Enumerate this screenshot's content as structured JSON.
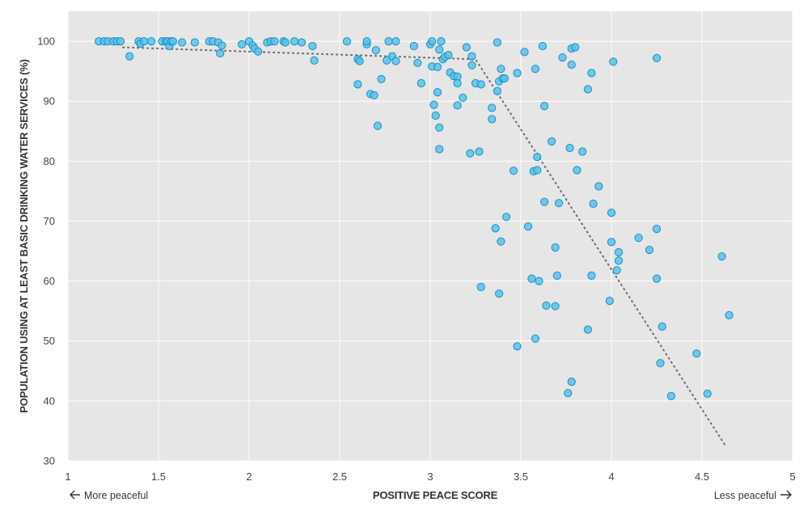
{
  "chart_data": {
    "type": "scatter",
    "title": "",
    "xlabel": "POSITIVE PEACE SCORE",
    "ylabel": "POPULATION USING AT LEAST BASIC DRINKING WATER SERVICES (%)",
    "xlim": [
      1,
      5
    ],
    "ylim": [
      30,
      105
    ],
    "x_ticks": [
      "1",
      "1.5",
      "2",
      "2.5",
      "3",
      "3.5",
      "4",
      "4.5",
      "5"
    ],
    "y_ticks": [
      "30",
      "40",
      "50",
      "60",
      "70",
      "80",
      "90",
      "100"
    ],
    "x_tick_values": [
      1,
      1.5,
      2,
      2.5,
      3,
      3.5,
      4,
      4.5,
      5
    ],
    "y_tick_values": [
      30,
      40,
      50,
      60,
      70,
      80,
      90,
      100
    ],
    "left_note": "More peaceful",
    "right_note": "Less peaceful",
    "grid": true,
    "colors": {
      "background": "#e6e6e6",
      "gridline": "#ffffff",
      "point_fill": "#5bc2e7",
      "point_stroke": "#1a8fc4",
      "trend_line": "#707070"
    },
    "trend_line": {
      "style": "dashed",
      "points": [
        [
          1.3,
          99.0
        ],
        [
          3.25,
          97.0
        ],
        [
          4.63,
          32.5
        ]
      ]
    },
    "points": [
      [
        1.17,
        100
      ],
      [
        1.2,
        100
      ],
      [
        1.22,
        100
      ],
      [
        1.25,
        100
      ],
      [
        1.27,
        100
      ],
      [
        1.29,
        100
      ],
      [
        1.34,
        97.5
      ],
      [
        1.39,
        100
      ],
      [
        1.4,
        99.6
      ],
      [
        1.42,
        100
      ],
      [
        1.46,
        100
      ],
      [
        1.52,
        100
      ],
      [
        1.54,
        100
      ],
      [
        1.55,
        100
      ],
      [
        1.56,
        99.2
      ],
      [
        1.57,
        100
      ],
      [
        1.58,
        100
      ],
      [
        1.63,
        99.8
      ],
      [
        1.7,
        99.8
      ],
      [
        1.78,
        100
      ],
      [
        1.8,
        100
      ],
      [
        1.83,
        99.8
      ],
      [
        1.84,
        98
      ],
      [
        1.85,
        99.3
      ],
      [
        1.96,
        99.5
      ],
      [
        2.0,
        100
      ],
      [
        2.02,
        99.3
      ],
      [
        2.03,
        98.8
      ],
      [
        2.05,
        98.3
      ],
      [
        2.1,
        99.8
      ],
      [
        2.12,
        100
      ],
      [
        2.14,
        100
      ],
      [
        2.19,
        100
      ],
      [
        2.2,
        99.8
      ],
      [
        2.25,
        100
      ],
      [
        2.29,
        99.8
      ],
      [
        2.35,
        99.2
      ],
      [
        2.36,
        96.8
      ],
      [
        2.54,
        100
      ],
      [
        2.6,
        97
      ],
      [
        2.6,
        92.8
      ],
      [
        2.61,
        96.7
      ],
      [
        2.65,
        99.5
      ],
      [
        2.65,
        100
      ],
      [
        2.67,
        91.2
      ],
      [
        2.69,
        91
      ],
      [
        2.7,
        98.5
      ],
      [
        2.71,
        85.9
      ],
      [
        2.73,
        93.7
      ],
      [
        2.76,
        96.8
      ],
      [
        2.77,
        100
      ],
      [
        2.79,
        97.5
      ],
      [
        2.81,
        96.7
      ],
      [
        2.81,
        100
      ],
      [
        2.91,
        99.2
      ],
      [
        2.93,
        96.4
      ],
      [
        2.95,
        93
      ],
      [
        3.0,
        99.5
      ],
      [
        3.01,
        100
      ],
      [
        3.01,
        95.8
      ],
      [
        3.02,
        89.4
      ],
      [
        3.03,
        87.6
      ],
      [
        3.04,
        95.7
      ],
      [
        3.04,
        91.5
      ],
      [
        3.05,
        85.6
      ],
      [
        3.05,
        82
      ],
      [
        3.05,
        98.6
      ],
      [
        3.06,
        100
      ],
      [
        3.07,
        97
      ],
      [
        3.08,
        97.4
      ],
      [
        3.1,
        97.7
      ],
      [
        3.11,
        94.8
      ],
      [
        3.13,
        94.2
      ],
      [
        3.15,
        94.1
      ],
      [
        3.15,
        93
      ],
      [
        3.15,
        89.3
      ],
      [
        3.18,
        90.6
      ],
      [
        3.2,
        99
      ],
      [
        3.22,
        81.3
      ],
      [
        3.23,
        97.5
      ],
      [
        3.23,
        96
      ],
      [
        3.25,
        93
      ],
      [
        3.27,
        81.6
      ],
      [
        3.28,
        92.8
      ],
      [
        3.28,
        59
      ],
      [
        3.34,
        88.9
      ],
      [
        3.34,
        87
      ],
      [
        3.36,
        68.8
      ],
      [
        3.37,
        99.8
      ],
      [
        3.37,
        91.7
      ],
      [
        3.38,
        93.3
      ],
      [
        3.38,
        57.9
      ],
      [
        3.39,
        95.4
      ],
      [
        3.39,
        66.6
      ],
      [
        3.4,
        93.8
      ],
      [
        3.41,
        93.8
      ],
      [
        3.42,
        70.7
      ],
      [
        3.46,
        78.4
      ],
      [
        3.48,
        94.7
      ],
      [
        3.48,
        49.1
      ],
      [
        3.52,
        98.2
      ],
      [
        3.54,
        69.1
      ],
      [
        3.56,
        60.4
      ],
      [
        3.57,
        78.3
      ],
      [
        3.58,
        95.4
      ],
      [
        3.58,
        50.4
      ],
      [
        3.59,
        80.7
      ],
      [
        3.59,
        78.5
      ],
      [
        3.6,
        60
      ],
      [
        3.62,
        99.2
      ],
      [
        3.63,
        89.2
      ],
      [
        3.63,
        73.2
      ],
      [
        3.64,
        55.9
      ],
      [
        3.67,
        83.3
      ],
      [
        3.69,
        65.6
      ],
      [
        3.69,
        55.8
      ],
      [
        3.7,
        60.9
      ],
      [
        3.71,
        73
      ],
      [
        3.73,
        97.3
      ],
      [
        3.76,
        41.3
      ],
      [
        3.77,
        82.2
      ],
      [
        3.78,
        98.8
      ],
      [
        3.78,
        96.1
      ],
      [
        3.78,
        43.2
      ],
      [
        3.8,
        99
      ],
      [
        3.81,
        78.5
      ],
      [
        3.84,
        81.6
      ],
      [
        3.87,
        92
      ],
      [
        3.87,
        51.9
      ],
      [
        3.89,
        94.7
      ],
      [
        3.89,
        60.9
      ],
      [
        3.9,
        72.9
      ],
      [
        3.93,
        75.8
      ],
      [
        3.99,
        56.7
      ],
      [
        4.0,
        71.4
      ],
      [
        4.0,
        66.5
      ],
      [
        4.01,
        96.6
      ],
      [
        4.03,
        61.8
      ],
      [
        4.04,
        64.8
      ],
      [
        4.04,
        63.4
      ],
      [
        4.15,
        67.2
      ],
      [
        4.21,
        65.2
      ],
      [
        4.25,
        97.2
      ],
      [
        4.25,
        68.7
      ],
      [
        4.25,
        60.4
      ],
      [
        4.27,
        46.3
      ],
      [
        4.28,
        52.4
      ],
      [
        4.33,
        40.8
      ],
      [
        4.47,
        47.9
      ],
      [
        4.53,
        41.2
      ],
      [
        4.61,
        64.1
      ],
      [
        4.65,
        54.3
      ]
    ]
  }
}
